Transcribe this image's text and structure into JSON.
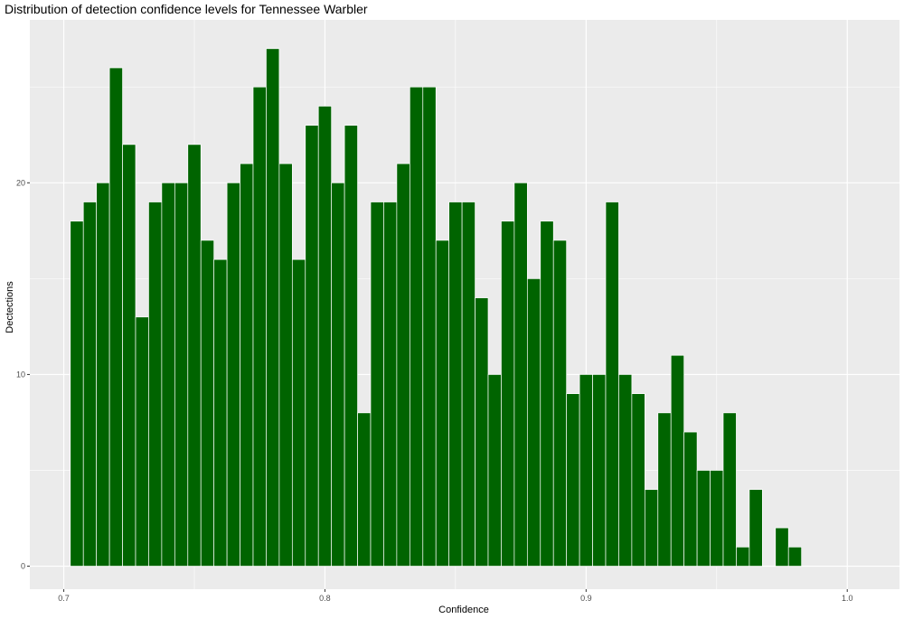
{
  "chart_data": {
    "type": "bar",
    "title": "Distribution of detection confidence levels for Tennessee Warbler",
    "xlabel": "Confidence",
    "ylabel": "Dectections",
    "xlim": [
      0.687,
      1.02
    ],
    "ylim": [
      -1.2,
      28.5
    ],
    "x_ticks": [
      "0.7",
      "0.8",
      "0.9",
      "1.0"
    ],
    "y_ticks": [
      "0",
      "10",
      "20"
    ],
    "bin_width": 0.005,
    "x": [
      0.705,
      0.71,
      0.715,
      0.72,
      0.725,
      0.73,
      0.735,
      0.74,
      0.745,
      0.75,
      0.755,
      0.76,
      0.765,
      0.77,
      0.775,
      0.78,
      0.785,
      0.79,
      0.795,
      0.8,
      0.805,
      0.81,
      0.815,
      0.82,
      0.825,
      0.83,
      0.835,
      0.84,
      0.845,
      0.85,
      0.855,
      0.86,
      0.865,
      0.87,
      0.875,
      0.88,
      0.885,
      0.89,
      0.895,
      0.9,
      0.905,
      0.91,
      0.915,
      0.92,
      0.925,
      0.93,
      0.935,
      0.94,
      0.945,
      0.95,
      0.955,
      0.96,
      0.965,
      0.97,
      0.975,
      0.98
    ],
    "values": [
      18,
      19,
      20,
      26,
      22,
      13,
      19,
      20,
      20,
      22,
      17,
      16,
      20,
      21,
      25,
      27,
      21,
      16,
      23,
      24,
      20,
      23,
      8,
      19,
      19,
      21,
      25,
      25,
      17,
      19,
      19,
      14,
      10,
      18,
      20,
      15,
      18,
      17,
      9,
      10,
      10,
      19,
      10,
      9,
      4,
      8,
      11,
      7,
      5,
      5,
      8,
      1,
      4,
      0,
      2,
      1
    ],
    "grid": true,
    "colors": {
      "bar_fill": "#006400",
      "bar_outline": "#ffffff",
      "panel_background": "#ebebeb",
      "grid": "#ffffff"
    }
  }
}
